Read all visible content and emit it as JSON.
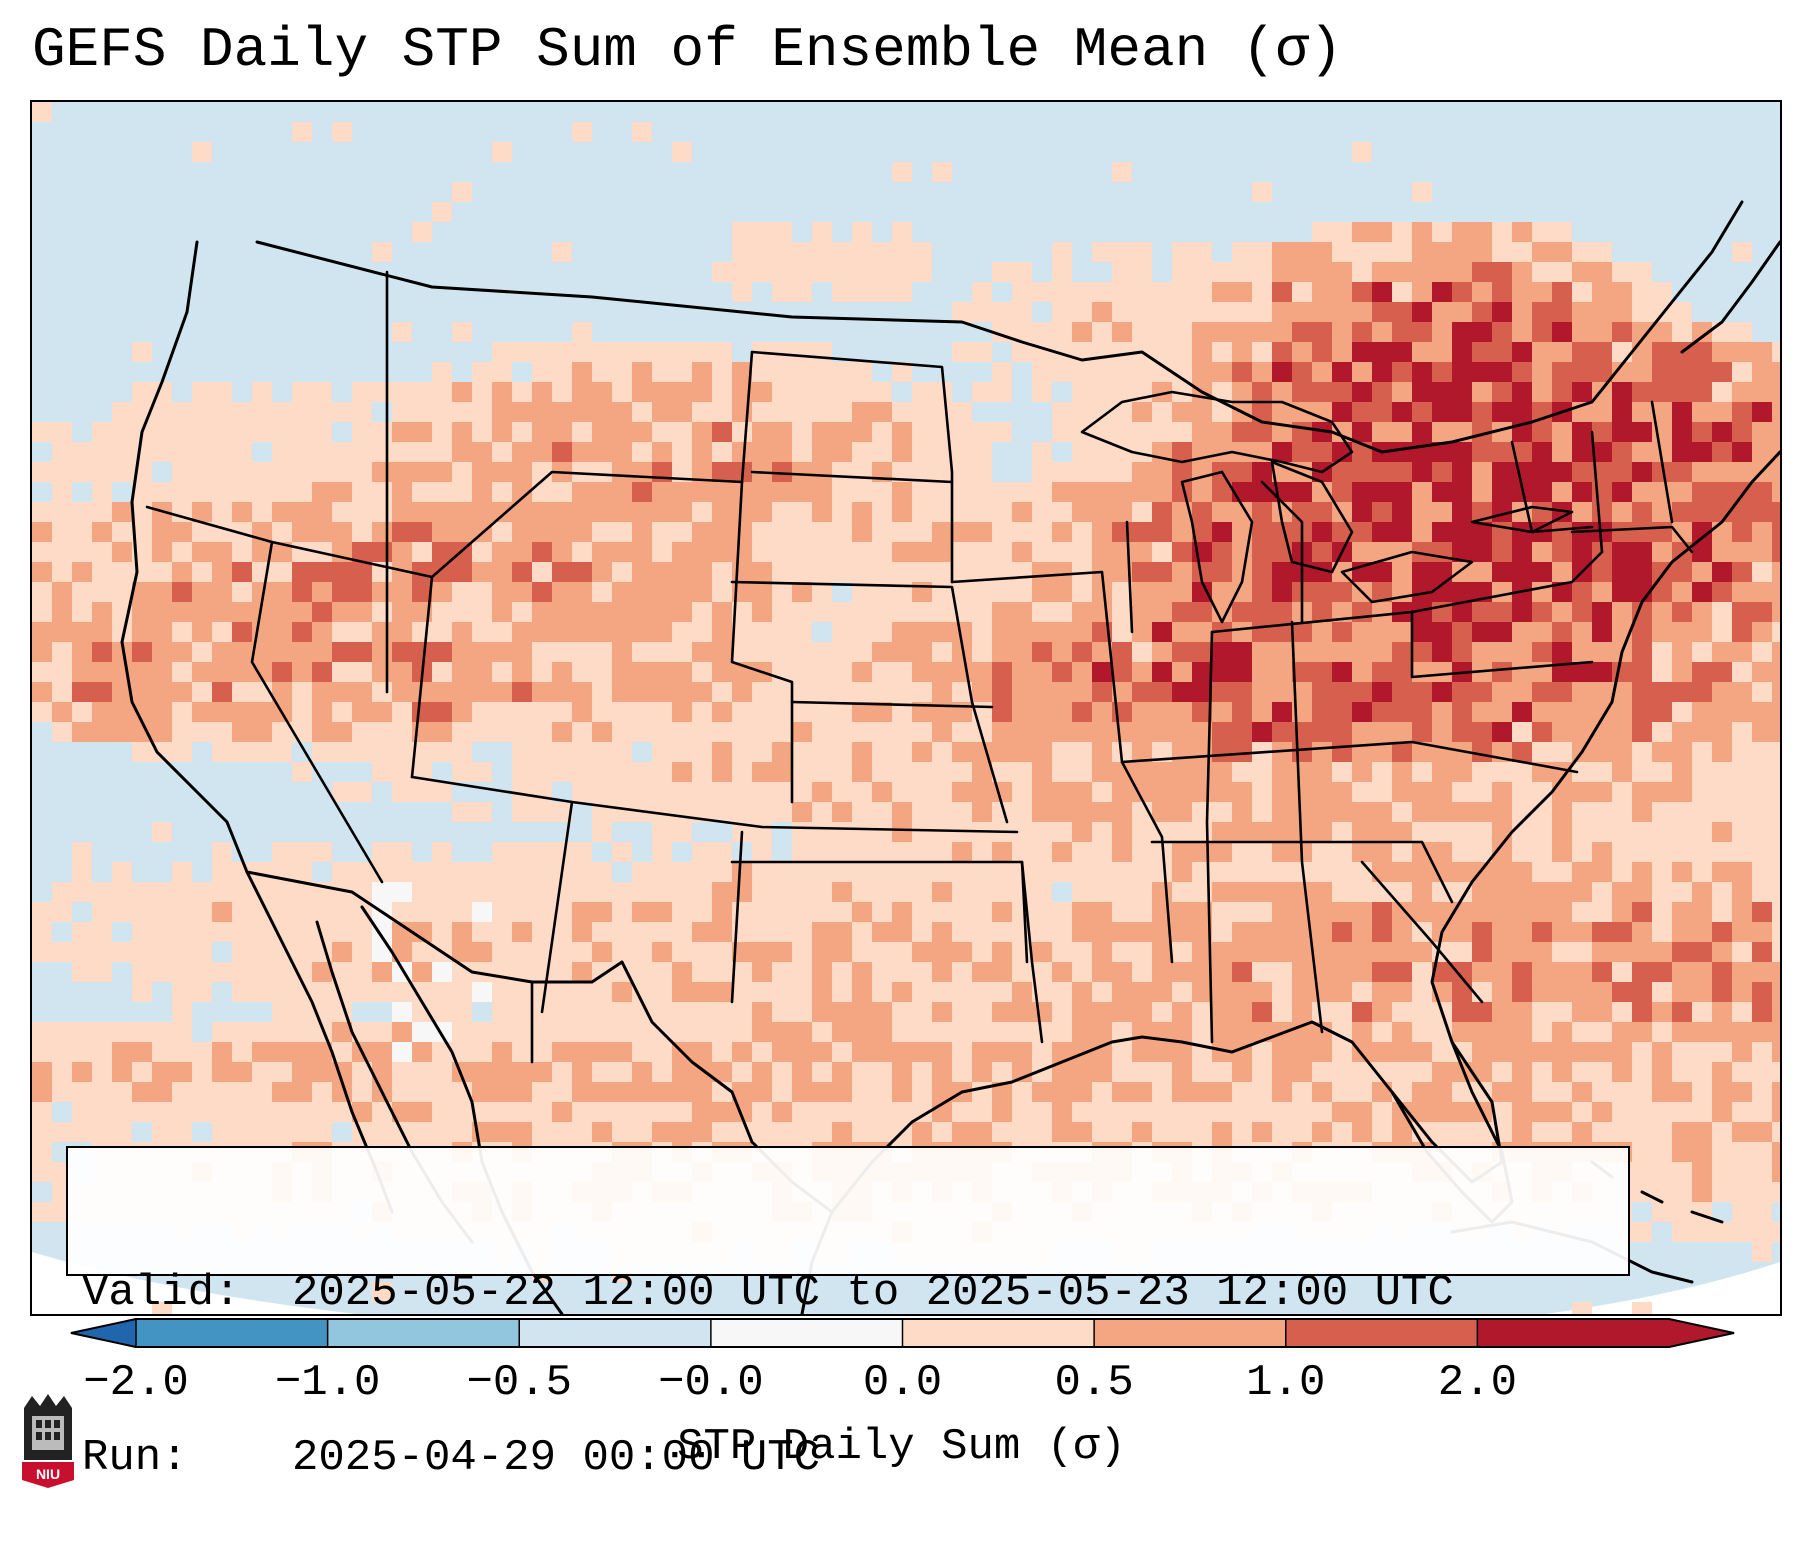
{
  "title": "GEFS Daily STP Sum of Ensemble Mean (σ)",
  "info": {
    "valid_label": "Valid:",
    "valid_value": "2025-05-22 12:00 UTC to 2025-05-23 12:00 UTC",
    "run_label": "Run:",
    "run_value": "2025-04-29 00:00 UTC"
  },
  "colorbar": {
    "label": "STP Daily Sum (σ)",
    "boundaries": [
      -2.0,
      -1.0,
      -0.5,
      -0.0,
      0.0,
      0.5,
      1.0,
      2.0
    ],
    "tick_labels": [
      "−2.0",
      "−1.0",
      "−0.5",
      "−0.0",
      "0.0",
      "0.5",
      "1.0",
      "2.0"
    ],
    "colors": [
      "#4393c3",
      "#92c5de",
      "#d1e5f0",
      "#f7f7f7",
      "#fddbc7",
      "#f4a582",
      "#d6604d",
      "#b2182b"
    ],
    "under_color": "#2166ac",
    "over_color": "#b2182b"
  },
  "map": {
    "background_color": "#d1e5f0",
    "projection": "Lambert Conformal",
    "region": "CONUS",
    "anomaly_areas": [
      {
        "region": "Northeast / Great Lakes",
        "level": "1.0 to 2.0"
      },
      {
        "region": "Ohio Valley / Mid-Atlantic",
        "level": "0.5 to 2.0"
      },
      {
        "region": "Western Atlantic",
        "level": "0.0 to 1.0"
      },
      {
        "region": "Northern Rockies / Intermountain West",
        "level": "0.0 to 2.0"
      },
      {
        "region": "Central Plains / Upper Midwest",
        "level": "0.0 to 0.5"
      }
    ]
  },
  "logo": {
    "text": "NIU"
  }
}
